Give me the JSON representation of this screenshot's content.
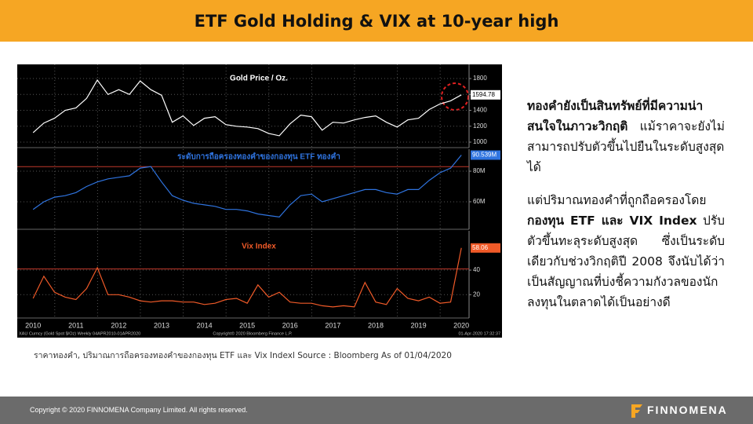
{
  "header": {
    "title": "ETF Gold Holding & VIX at 10-year high"
  },
  "chart_data": [
    {
      "type": "line",
      "title": "Gold Price / Oz.",
      "color": "#ffffff",
      "x": [
        2010,
        2010.25,
        2010.5,
        2010.75,
        2011,
        2011.25,
        2011.5,
        2011.75,
        2012,
        2012.25,
        2012.5,
        2012.75,
        2013,
        2013.25,
        2013.5,
        2013.75,
        2014,
        2014.25,
        2014.5,
        2014.75,
        2015,
        2015.25,
        2015.5,
        2015.75,
        2016,
        2016.25,
        2016.5,
        2016.75,
        2017,
        2017.25,
        2017.5,
        2017.75,
        2018,
        2018.25,
        2018.5,
        2018.75,
        2019,
        2019.25,
        2019.5,
        2019.75,
        2020
      ],
      "values": [
        1120,
        1240,
        1300,
        1400,
        1430,
        1550,
        1780,
        1600,
        1660,
        1600,
        1770,
        1660,
        1590,
        1250,
        1330,
        1210,
        1300,
        1320,
        1220,
        1200,
        1190,
        1170,
        1110,
        1080,
        1230,
        1340,
        1320,
        1150,
        1250,
        1240,
        1280,
        1310,
        1330,
        1250,
        1190,
        1280,
        1300,
        1410,
        1480,
        1520,
        1594.78
      ],
      "value_labels": [
        null,
        null,
        null,
        null,
        null,
        null,
        null,
        null,
        null,
        null,
        null,
        null,
        null,
        null,
        null,
        null,
        null,
        null,
        null,
        null,
        null,
        null,
        null,
        null,
        null,
        null,
        null,
        null,
        null,
        null,
        null,
        null,
        null,
        null,
        null,
        null,
        null,
        null,
        null,
        null,
        "1594.78"
      ],
      "xlim": [
        2009.63,
        2020.18
      ],
      "xticks": [
        2010,
        2011,
        2012,
        2013,
        2014,
        2015,
        2016,
        2017,
        2018,
        2019,
        2020
      ],
      "ylim": [
        931,
        1978
      ],
      "yticks": [
        1000,
        1200,
        1400,
        1600,
        1800
      ],
      "grid": true
    },
    {
      "type": "line",
      "title": "ระดับการถือครองทองคำของกองทุน ETF ทองคำ",
      "color": "#2f74e0",
      "reference_line": 83,
      "reference_color": "#c0392b",
      "x": [
        2010,
        2010.25,
        2010.5,
        2010.75,
        2011,
        2011.25,
        2011.5,
        2011.75,
        2012,
        2012.25,
        2012.5,
        2012.75,
        2013,
        2013.25,
        2013.5,
        2013.75,
        2014,
        2014.25,
        2014.5,
        2014.75,
        2015,
        2015.25,
        2015.5,
        2015.75,
        2016,
        2016.25,
        2016.5,
        2016.75,
        2017,
        2017.25,
        2017.5,
        2017.75,
        2018,
        2018.25,
        2018.5,
        2018.75,
        2019,
        2019.25,
        2019.5,
        2019.75,
        2020
      ],
      "values": [
        55,
        60,
        63,
        64,
        66,
        70,
        73,
        75,
        76,
        77,
        82,
        83,
        73,
        64,
        61,
        59,
        58,
        57,
        55,
        55,
        54,
        52,
        51,
        50,
        58,
        64,
        65,
        60,
        62,
        64,
        66,
        68,
        68,
        66,
        65,
        68,
        68,
        74,
        79,
        82,
        90.539
      ],
      "value_labels": [
        null,
        null,
        null,
        null,
        null,
        null,
        null,
        null,
        null,
        null,
        null,
        null,
        null,
        null,
        null,
        null,
        null,
        null,
        null,
        null,
        null,
        null,
        null,
        null,
        null,
        null,
        null,
        null,
        null,
        null,
        null,
        null,
        null,
        null,
        null,
        null,
        null,
        null,
        null,
        null,
        "90.539M"
      ],
      "xlim": [
        2009.63,
        2020.18
      ],
      "xticks": [
        2010,
        2011,
        2012,
        2013,
        2014,
        2015,
        2016,
        2017,
        2018,
        2019,
        2020
      ],
      "ylim": [
        42,
        94.4
      ],
      "yticks": [
        {
          "value": 60,
          "label": "60M"
        },
        {
          "value": 80,
          "label": "80M"
        }
      ],
      "grid": true
    },
    {
      "type": "line",
      "title": "Vix Index",
      "color": "#f05a28",
      "reference_line": 41,
      "reference_color": "#c0392b",
      "x": [
        2010,
        2010.25,
        2010.5,
        2010.75,
        2011,
        2011.25,
        2011.5,
        2011.75,
        2012,
        2012.25,
        2012.5,
        2012.75,
        2013,
        2013.25,
        2013.5,
        2013.75,
        2014,
        2014.25,
        2014.5,
        2014.75,
        2015,
        2015.25,
        2015.5,
        2015.75,
        2016,
        2016.25,
        2016.5,
        2016.75,
        2017,
        2017.25,
        2017.5,
        2017.75,
        2018,
        2018.25,
        2018.5,
        2018.75,
        2019,
        2019.25,
        2019.5,
        2019.75,
        2020
      ],
      "values": [
        17,
        35,
        22,
        18,
        16,
        25,
        42,
        20,
        20,
        18,
        15,
        14,
        15,
        15,
        14,
        14,
        12,
        13,
        16,
        17,
        13,
        28,
        18,
        22,
        14,
        13,
        13,
        11,
        10,
        11,
        10,
        30,
        14,
        12,
        25,
        17,
        15,
        18,
        13,
        14,
        58.06
      ],
      "value_labels": [
        null,
        null,
        null,
        null,
        null,
        null,
        null,
        null,
        null,
        null,
        null,
        null,
        null,
        null,
        null,
        null,
        null,
        null,
        null,
        null,
        null,
        null,
        null,
        null,
        null,
        null,
        null,
        null,
        null,
        null,
        null,
        null,
        null,
        null,
        null,
        null,
        null,
        null,
        null,
        null,
        "58.06"
      ],
      "xlim": [
        2009.63,
        2020.18
      ],
      "xticks": [
        2010,
        2011,
        2012,
        2013,
        2014,
        2015,
        2016,
        2017,
        2018,
        2019,
        2020
      ],
      "ylim": [
        1,
        72
      ],
      "yticks": [
        20,
        40
      ],
      "grid": true
    }
  ],
  "chart_footer": {
    "left": "XAU Curncy (Gold Spot $/Oz) Weekly 04APR2010-01APR2020",
    "center": "Copyright© 2020 Bloomberg Finance L.P.",
    "right": "01-Apr-2020 17:32:37"
  },
  "caption": "ราคาทองคำ, ปริมาณการถือครองทองคำของกองทุน ETF และ Vix Indexl Source : Bloomberg As of 01/04/2020",
  "body": {
    "p1_bold": "ทองคำยังเป็นสินทรัพย์ที่มีความน่าสนใจในภาวะวิกฤติ",
    "p1_text": "แม้ราคาจะยังไม่สามารถปรับตัวขึ้นไปยืนในระดับสูงสุดได้",
    "p2_text1": "แต่ปริมาณทองคำที่ถูกถือครองโดย",
    "p2_bold": "กองทุน ETF และ VIX Index",
    "p2_text2": "ปรับตัวขึ้นทะลุระดับสูงสุด ซึ่งเป็นระดับเดียวกับช่วงวิกฤติปี 2008 จึงนับได้ว่าเป็นสัญญาณที่บ่งชี้ความกังวลของนักลงทุนในตลาดได้เป็นอย่างดี"
  },
  "footer": {
    "copyright": "Copyright © 2020 FINNOMENA Company Limited. All rights reserved.",
    "logo": "FINNOMENA"
  }
}
